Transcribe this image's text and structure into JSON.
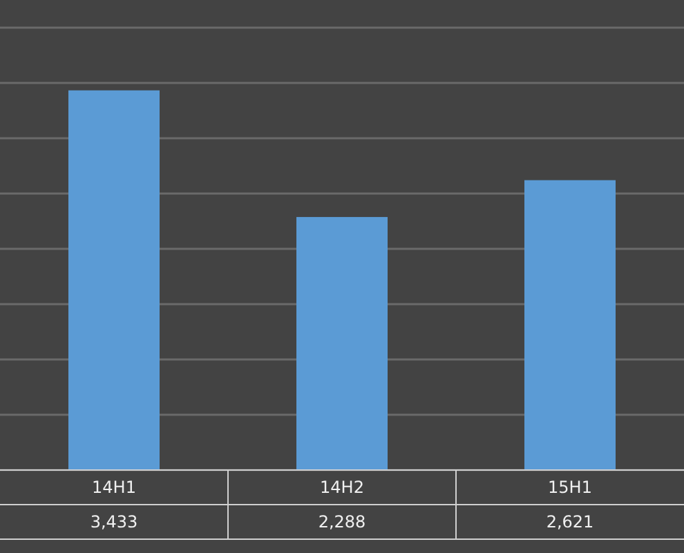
{
  "chart_data": {
    "type": "bar",
    "categories": [
      "14H1",
      "14H2",
      "15H1"
    ],
    "values": [
      3433,
      2288,
      2621
    ],
    "value_labels": [
      "3,433",
      "2,288",
      "2,621"
    ],
    "color": "#5b9bd5",
    "data_labels": true,
    "ylim": [
      0,
      4000
    ],
    "yticks": [
      {
        "value": 0,
        "label": null
      },
      {
        "value": 500,
        "label": null
      },
      {
        "value": 1000,
        "label": null
      },
      {
        "value": 1500,
        "label": null
      },
      {
        "value": 2000,
        "label": null
      },
      {
        "value": 2500,
        "label": null
      },
      {
        "value": 3000,
        "label": null
      },
      {
        "value": 3500,
        "label": null
      },
      {
        "value": 4000,
        "label": null
      }
    ],
    "grid": true,
    "tick_labels": "x"
  }
}
